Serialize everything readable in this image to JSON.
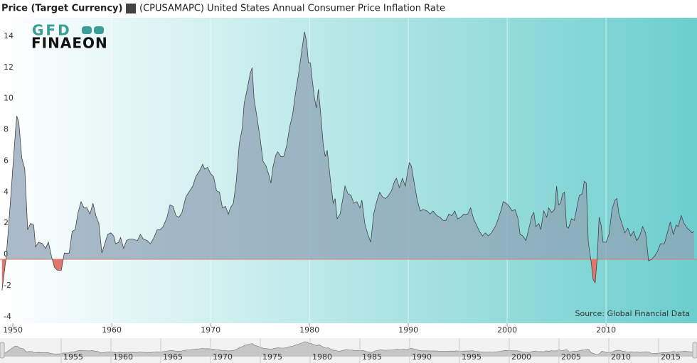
{
  "chart_data": {
    "type": "area",
    "title": "Price (Target Currency)",
    "source": "Source: Global Financial Data",
    "logo": {
      "top": "GFD",
      "bottom": "FINAEON"
    },
    "x": [
      1948.9,
      1949.1,
      1949.3,
      1949.5,
      1949.9,
      1950.3,
      1950.4,
      1950.6,
      1950.9,
      1951.2,
      1951.5,
      1951.8,
      1952.1,
      1952.3,
      1952.6,
      1953.0,
      1953.3,
      1953.6,
      1953.9,
      1954.2,
      1954.5,
      1954.9,
      1955.2,
      1955.7,
      1956.0,
      1956.3,
      1956.6,
      1956.9,
      1957.2,
      1957.5,
      1957.8,
      1958.1,
      1958.4,
      1958.7,
      1959.0,
      1959.3,
      1959.6,
      1959.9,
      1960.2,
      1960.4,
      1960.7,
      1960.9,
      1961.2,
      1961.5,
      1961.8,
      1962.1,
      1962.6,
      1962.9,
      1963.2,
      1963.6,
      1963.9,
      1964.2,
      1964.6,
      1964.9,
      1965.2,
      1965.6,
      1965.9,
      1966.2,
      1966.5,
      1966.8,
      1967.1,
      1967.5,
      1967.9,
      1968.2,
      1968.5,
      1968.9,
      1969.2,
      1969.4,
      1969.7,
      1970.0,
      1970.3,
      1970.6,
      1970.9,
      1971.2,
      1971.5,
      1971.8,
      1972.0,
      1972.3,
      1972.6,
      1972.9,
      1973.2,
      1973.4,
      1973.7,
      1974.0,
      1974.2,
      1974.4,
      1974.7,
      1975.0,
      1975.3,
      1975.6,
      1975.9,
      1976.1,
      1976.3,
      1976.6,
      1976.8,
      1977.1,
      1977.4,
      1977.7,
      1978.0,
      1978.3,
      1978.6,
      1978.9,
      1979.2,
      1979.5,
      1979.7,
      1979.9,
      1980.1,
      1980.3,
      1980.5,
      1980.7,
      1980.9,
      1981.1,
      1981.4,
      1981.6,
      1981.8,
      1982.1,
      1982.4,
      1982.6,
      1982.8,
      1983.1,
      1983.4,
      1983.6,
      1983.9,
      1984.2,
      1984.5,
      1984.8,
      1985.1,
      1985.3,
      1985.6,
      1985.9,
      1986.2,
      1986.5,
      1986.8,
      1987.1,
      1987.4,
      1987.7,
      1988.0,
      1988.3,
      1988.6,
      1988.8,
      1989.1,
      1989.4,
      1989.7,
      1989.9,
      1990.1,
      1990.3,
      1990.6,
      1990.9,
      1991.2,
      1991.5,
      1991.9,
      1992.2,
      1992.5,
      1992.9,
      1993.2,
      1993.5,
      1993.8,
      1994.1,
      1994.4,
      1994.7,
      1995.0,
      1995.3,
      1995.6,
      1996.0,
      1996.3,
      1996.6,
      1996.9,
      1997.2,
      1997.5,
      1997.8,
      1998.1,
      1998.4,
      1998.8,
      1999.1,
      1999.4,
      1999.6,
      1999.9,
      2000.2,
      2000.5,
      2000.8,
      2001.1,
      2001.3,
      2001.6,
      2001.9,
      2002.2,
      2002.5,
      2002.7,
      2002.9,
      2003.2,
      2003.4,
      2003.7,
      2004.0,
      2004.2,
      2004.5,
      2004.8,
      2005.0,
      2005.2,
      2005.4,
      2005.6,
      2005.8,
      2006.0,
      2006.2,
      2006.5,
      2006.8,
      2007.1,
      2007.3,
      2007.6,
      2007.8,
      2008.0,
      2008.2,
      2008.5,
      2008.7,
      2008.9,
      2009.1,
      2009.3,
      2009.5,
      2009.7,
      2010.0,
      2010.3,
      2010.6,
      2010.9,
      2011.1,
      2011.3,
      2011.6,
      2011.9,
      2012.2,
      2012.5,
      2012.8,
      2013.1,
      2013.4,
      2013.7,
      2014.0,
      2014.3,
      2014.6,
      2014.9,
      2015.2,
      2015.5,
      2015.9,
      2016.2,
      2016.5,
      2016.8,
      2017.1,
      2017.3,
      2017.6,
      2017.9,
      2018.2,
      2018.4,
      2018.7,
      2018.9
    ],
    "series": [
      {
        "name": "(CPUSAMAPC) United States Annual Consumer Price Inflation Rate",
        "color": "#444444",
        "fill": "#8fa3b5",
        "negative_fill": "#e0766c",
        "values": [
          -2.0,
          -1.0,
          0,
          1.5,
          5.0,
          8.5,
          9.2,
          8.8,
          6.5,
          5.8,
          1.9,
          2.3,
          2.2,
          0.8,
          1.1,
          1.0,
          0.7,
          1.1,
          0.2,
          -0.5,
          -0.7,
          -0.7,
          0.4,
          0.4,
          1.8,
          1.9,
          3.0,
          3.7,
          3.3,
          3.3,
          2.9,
          3.6,
          2.8,
          2.3,
          0.4,
          1.0,
          1.6,
          1.7,
          1.5,
          1.0,
          1.1,
          1.4,
          0.7,
          1.2,
          1.3,
          1.3,
          1.2,
          1.6,
          1.3,
          1.2,
          1.0,
          1.3,
          1.9,
          1.9,
          2.1,
          2.7,
          3.5,
          3.4,
          2.8,
          2.7,
          3.0,
          4.0,
          4.4,
          4.7,
          5.3,
          5.7,
          6.1,
          5.8,
          5.9,
          5.5,
          5.3,
          4.4,
          4.3,
          3.3,
          3.4,
          2.9,
          3.3,
          3.6,
          5.0,
          7.4,
          8.4,
          10.0,
          10.9,
          11.9,
          12.3,
          10.3,
          9.1,
          7.8,
          6.3,
          6.0,
          5.4,
          4.9,
          5.9,
          6.7,
          6.9,
          6.6,
          6.6,
          7.3,
          8.5,
          9.3,
          10.7,
          11.9,
          13.3,
          14.6,
          14.0,
          12.6,
          12.6,
          11.4,
          10.4,
          9.7,
          10.9,
          9.6,
          7.3,
          6.6,
          7.0,
          5.2,
          3.6,
          3.9,
          2.6,
          2.9,
          4.0,
          4.7,
          4.2,
          4.1,
          3.6,
          3.7,
          3.3,
          3.8,
          2.3,
          1.6,
          1.1,
          2.9,
          3.7,
          4.3,
          4.0,
          3.9,
          4.1,
          4.4,
          5.0,
          5.2,
          4.6,
          5.2,
          4.7,
          5.5,
          6.2,
          6.0,
          4.9,
          3.8,
          3.1,
          3.2,
          3.1,
          2.9,
          3.1,
          2.8,
          2.7,
          2.5,
          2.5,
          2.9,
          2.8,
          3.1,
          2.6,
          2.7,
          2.9,
          2.9,
          3.3,
          2.6,
          2.2,
          1.8,
          1.5,
          1.7,
          1.5,
          1.7,
          2.1,
          2.6,
          3.2,
          3.7,
          3.6,
          3.4,
          3.1,
          3.2,
          2.6,
          1.6,
          1.5,
          1.2,
          2.0,
          2.8,
          3.0,
          2.1,
          2.3,
          1.9,
          3.1,
          2.7,
          3.3,
          3.0,
          3.2,
          4.7,
          3.5,
          3.6,
          4.2,
          4.3,
          2.1,
          2.0,
          2.6,
          2.5,
          3.5,
          4.1,
          4.2,
          5.0,
          4.9,
          1.1,
          -0.2,
          -1.3,
          -1.5,
          0.0,
          2.7,
          2.2,
          1.1,
          1.1,
          1.6,
          3.2,
          3.8,
          3.9,
          2.9,
          2.3,
          1.7,
          2.0,
          1.5,
          1.8,
          1.2,
          1.5,
          2.1,
          1.7,
          -0.1,
          0.0,
          0.2,
          0.5,
          1.0,
          1.0,
          1.7,
          2.4,
          1.6,
          2.2,
          2.1,
          2.8,
          2.3,
          2.0,
          1.9,
          1.7,
          1.8
        ]
      }
    ],
    "xlim": [
      1948.7,
      2019.2
    ],
    "xticks": [
      1950,
      1960,
      1970,
      1980,
      1990,
      2000,
      2010
    ],
    "ylim": [
      -4.1,
      15.5
    ],
    "yticks": [
      -4,
      -2,
      0,
      2,
      4,
      6,
      8,
      10,
      12,
      14
    ],
    "grid": "x",
    "navigator_xlim": [
      1948.86,
      2018.86
    ],
    "navigator_xticks": [
      1955,
      1960,
      1965,
      1970,
      1975,
      1980,
      1985,
      1990,
      1995,
      2000,
      2005,
      2010,
      2015
    ]
  }
}
